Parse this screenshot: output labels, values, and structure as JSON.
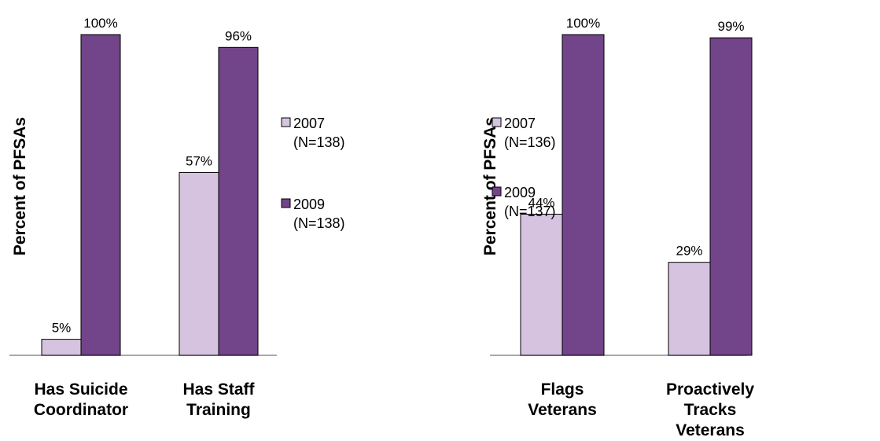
{
  "colors": {
    "s2007": "#d6c3e0",
    "s2009": "#72448a",
    "axis": "#8c8c8c",
    "edge": "#000000"
  },
  "chart_data": [
    {
      "type": "bar",
      "ylabel": "Percent of PFSAs",
      "ylim": [
        0,
        100
      ],
      "grid": false,
      "legend_position": "right",
      "categories": [
        [
          "Has Suicide",
          "Coordinator"
        ],
        [
          "Has Staff",
          "Training"
        ]
      ],
      "series": [
        {
          "name": [
            "2007",
            "(N=138)"
          ],
          "values": [
            5,
            57
          ],
          "labels": [
            "5%",
            "57%"
          ]
        },
        {
          "name": [
            "2009",
            "(N=138)"
          ],
          "values": [
            100,
            96
          ],
          "labels": [
            "100%",
            "96%"
          ]
        }
      ]
    },
    {
      "type": "bar",
      "ylabel": "Percent of PFSAs",
      "ylim": [
        0,
        100
      ],
      "grid": false,
      "legend_position": "right",
      "categories": [
        [
          "Flags",
          "Veterans"
        ],
        [
          "Proactively",
          "Tracks",
          "Veterans"
        ]
      ],
      "series": [
        {
          "name": [
            "2007",
            "(N=136)"
          ],
          "values": [
            44,
            29
          ],
          "labels": [
            "44%",
            "29%"
          ]
        },
        {
          "name": [
            "2009",
            "(N=137)"
          ],
          "values": [
            100,
            99
          ],
          "labels": [
            "100%",
            "99%"
          ]
        }
      ]
    }
  ]
}
